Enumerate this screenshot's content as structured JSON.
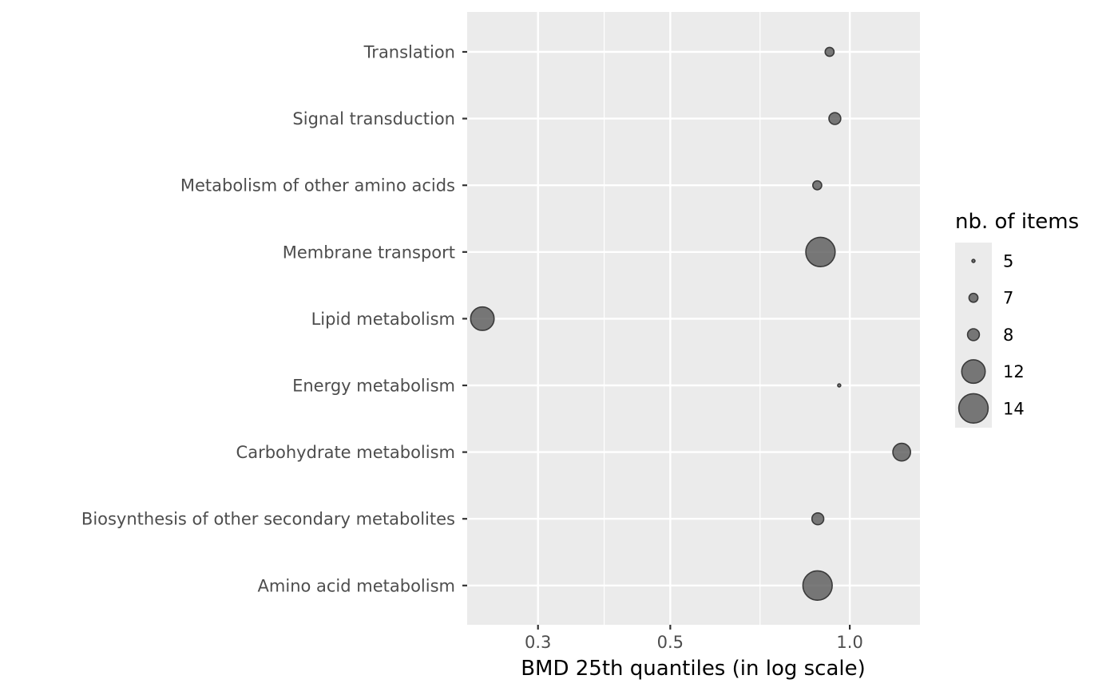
{
  "chart_data": {
    "type": "scatter",
    "title": "",
    "xlabel": "BMD 25th quantiles (in log scale)",
    "ylabel": "",
    "x_scale": "log10",
    "xlim": [
      0.2282,
      1.3113
    ],
    "x_major_ticks": [
      0.3,
      0.5,
      1.0
    ],
    "x_tick_labels": [
      "0.3",
      "0.5",
      "1.0"
    ],
    "x_minor_ticks": [
      0.3873,
      0.7071
    ],
    "grid": true,
    "categories": [
      "Amino acid metabolism",
      "Biosynthesis of other secondary metabolites",
      "Carbohydrate metabolism",
      "Energy metabolism",
      "Lipid metabolism",
      "Membrane transport",
      "Metabolism of other amino acids",
      "Signal transduction",
      "Translation"
    ],
    "points": [
      {
        "category": "Amino acid metabolism",
        "x": 0.883,
        "size": 14
      },
      {
        "category": "Biosynthesis of other secondary metabolites",
        "x": 0.884,
        "size": 8
      },
      {
        "category": "Carbohydrate metabolism",
        "x": 1.222,
        "size": 10
      },
      {
        "category": "Energy metabolism",
        "x": 0.96,
        "size": 5
      },
      {
        "category": "Lipid metabolism",
        "x": 0.242,
        "size": 12
      },
      {
        "category": "Membrane transport",
        "x": 0.893,
        "size": 14
      },
      {
        "category": "Metabolism of other amino acids",
        "x": 0.882,
        "size": 7
      },
      {
        "category": "Signal transduction",
        "x": 0.944,
        "size": 8
      },
      {
        "category": "Translation",
        "x": 0.925,
        "size": 7
      }
    ],
    "size_legend": {
      "title": "nb. of items",
      "position": "right",
      "entries": [
        {
          "label": "5",
          "size": 5
        },
        {
          "label": "7",
          "size": 7
        },
        {
          "label": "8",
          "size": 8
        },
        {
          "label": "12",
          "size": 12
        },
        {
          "label": "14",
          "size": 14
        }
      ]
    },
    "colors": {
      "panel": "#ebebeb",
      "grid": "#ffffff",
      "point_fill": "#595959",
      "point_stroke": "#3a3a3a",
      "tick": "#333333"
    }
  }
}
